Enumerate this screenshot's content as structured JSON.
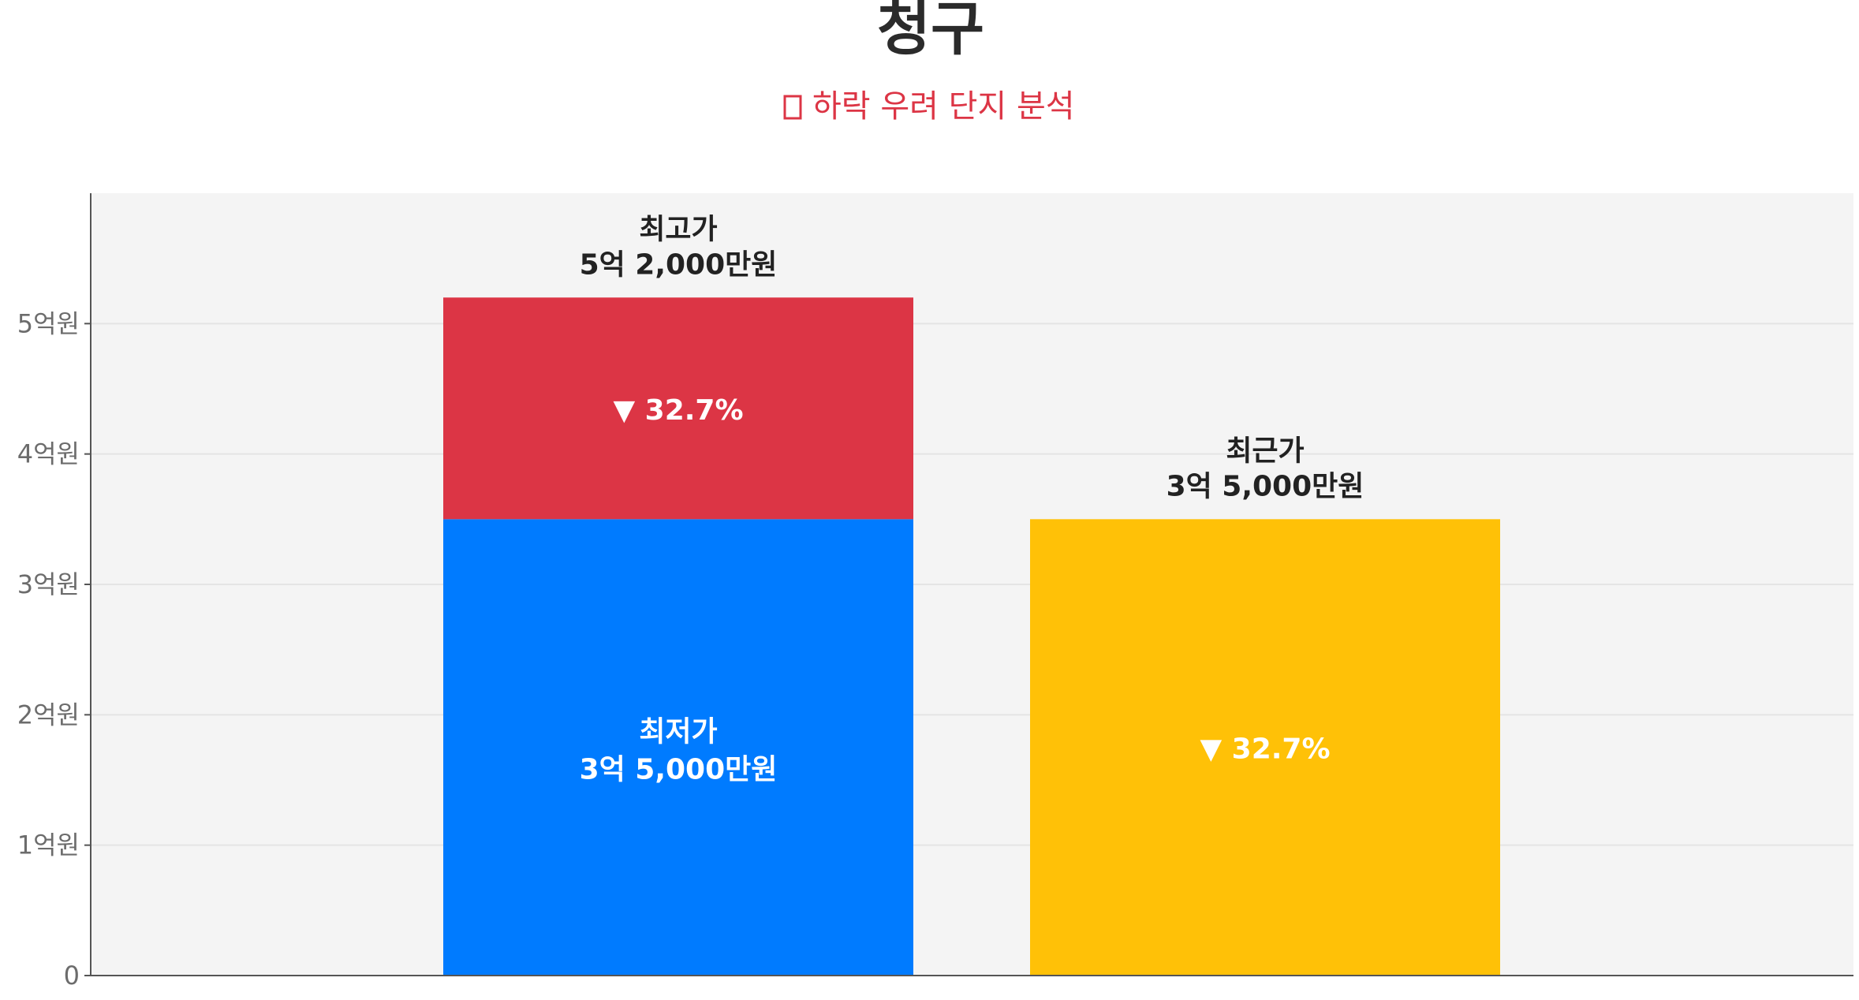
{
  "title": "청구",
  "subtitle": "하락 우려 단지 분석",
  "chart_data": {
    "type": "bar",
    "title": "청구",
    "subtitle": "하락 우려 단지 분석",
    "ylim": [
      0,
      6
    ],
    "yticks": [
      {
        "value": 0,
        "label": "0"
      },
      {
        "value": 1,
        "label": "1억원"
      },
      {
        "value": 2,
        "label": "2억원"
      },
      {
        "value": 3,
        "label": "3억원"
      },
      {
        "value": 4,
        "label": "4억원"
      },
      {
        "value": 5,
        "label": "5억원"
      }
    ],
    "grid": true,
    "bars": [
      {
        "segments": [
          {
            "name": "최저가",
            "from": 0,
            "to": 3.5,
            "color": "#007bff",
            "label_line1": "최저가",
            "label_line2": "3억 5,000만원"
          },
          {
            "name": "최고가",
            "from": 3.5,
            "to": 5.2,
            "color": "#dc3545",
            "label_line1": "▼ 32.7%"
          }
        ],
        "top_label_line1": "최고가",
        "top_label_line2": "5억 2,000만원"
      },
      {
        "segments": [
          {
            "name": "최근가",
            "from": 0,
            "to": 3.5,
            "color": "#ffc107",
            "label_line1": "▼ 32.7%"
          }
        ],
        "top_label_line1": "최근가",
        "top_label_line2": "3억 5,000만원"
      }
    ]
  },
  "colors": {
    "plot_background": "#f4f4f4",
    "axis": "#555555",
    "grid": "#e4e4e4",
    "subtitle": "#dc3545"
  }
}
